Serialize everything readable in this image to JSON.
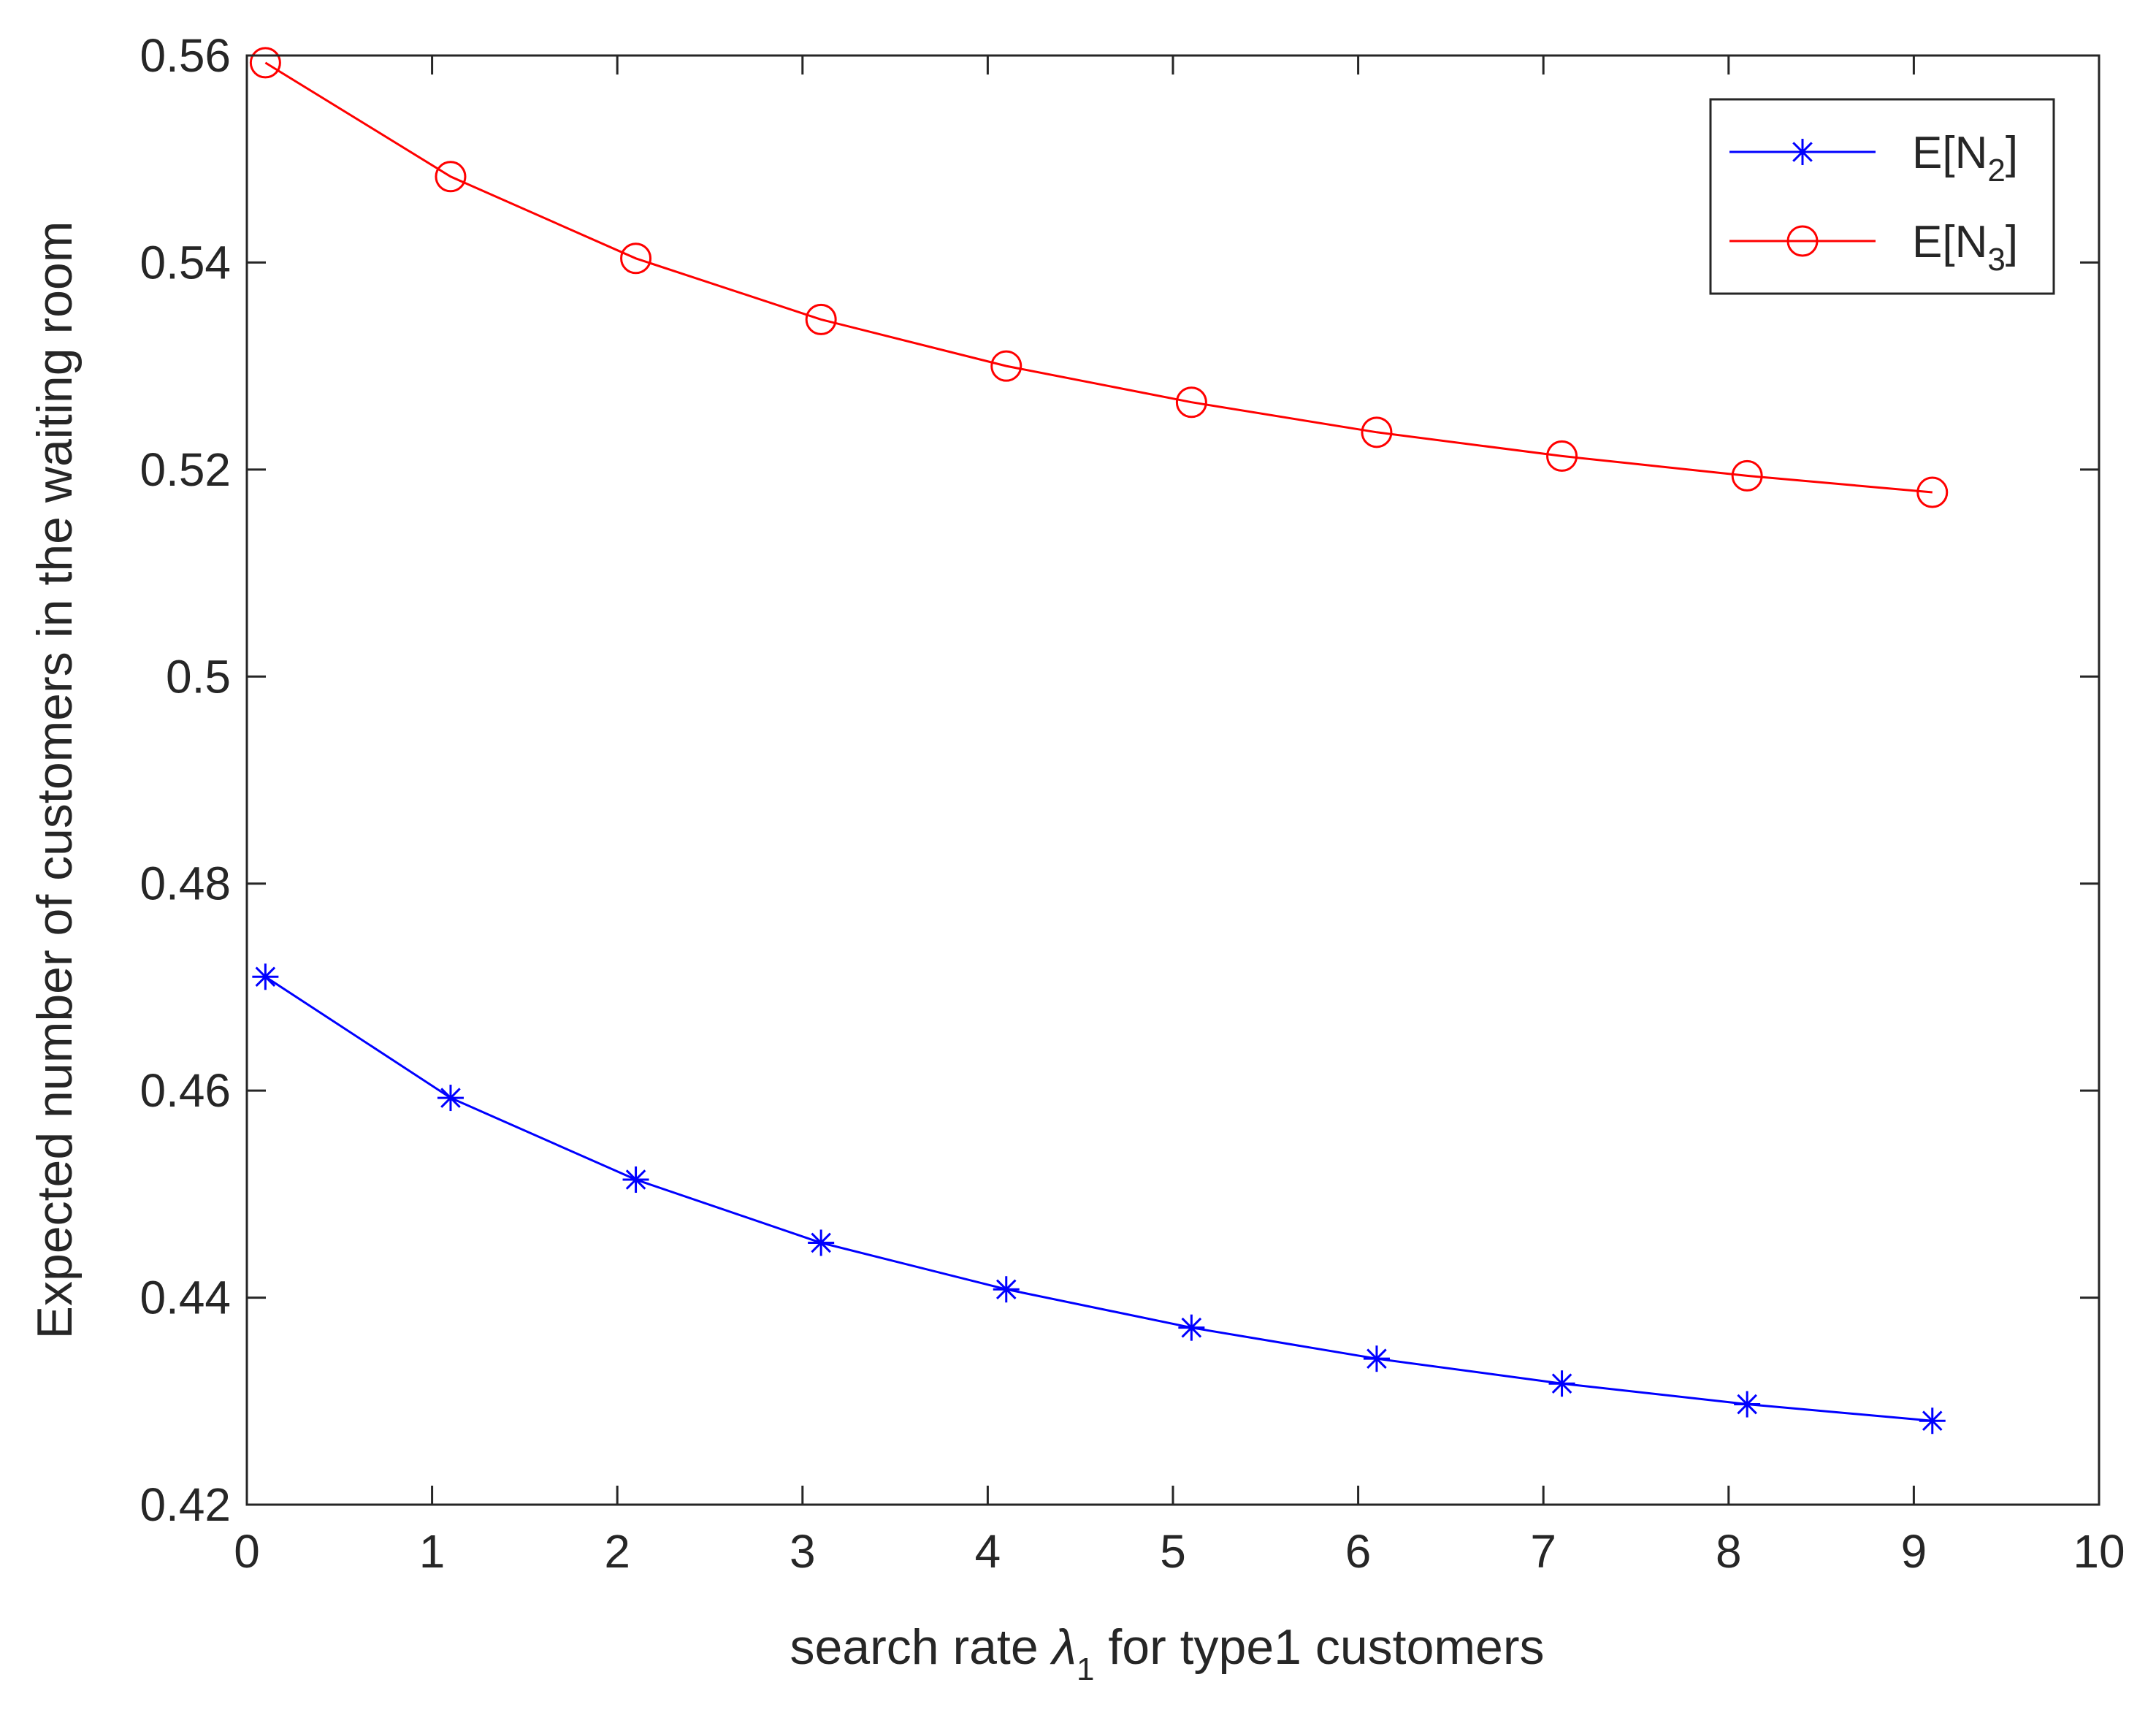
{
  "chart_data": {
    "type": "line",
    "title": "",
    "xlabel": {
      "prefix": "search rate ",
      "symbol": "λ",
      "subscript": "1",
      "suffix": " for type1 customers"
    },
    "ylabel": "Expected number of customers in the waiting room",
    "xlim": [
      0,
      10
    ],
    "ylim": [
      0.42,
      0.56
    ],
    "xticks": [
      0,
      1,
      2,
      3,
      4,
      5,
      6,
      7,
      8,
      9,
      10
    ],
    "xtick_labels": [
      "0",
      "1",
      "2",
      "3",
      "4",
      "5",
      "6",
      "7",
      "8",
      "9",
      "10"
    ],
    "yticks": [
      0.42,
      0.44,
      0.46,
      0.48,
      0.5,
      0.52,
      0.54,
      0.56
    ],
    "ytick_labels": [
      "0.42",
      "0.44",
      "0.46",
      "0.48",
      "0.5",
      "0.52",
      "0.54",
      "0.56"
    ],
    "grid": false,
    "legend_position": "top-right",
    "x": [
      0.1,
      1.1,
      2.1,
      3.1,
      4.1,
      5.1,
      6.1,
      7.1,
      8.1,
      9.1
    ],
    "series": [
      {
        "name": "E[N2]",
        "legend": {
          "prefix": "E[N",
          "subscript": "2",
          "suffix": "]"
        },
        "color": "#0000ff",
        "marker": "asterisk",
        "values": [
          0.471,
          0.4593,
          0.4514,
          0.4453,
          0.4408,
          0.4371,
          0.4341,
          0.4317,
          0.4297,
          0.4281
        ]
      },
      {
        "name": "E[N3]",
        "legend": {
          "prefix": "E[N",
          "subscript": "3",
          "suffix": "]"
        },
        "color": "#ff0000",
        "marker": "circle",
        "values": [
          0.5593,
          0.5483,
          0.5404,
          0.5345,
          0.53,
          0.5265,
          0.5236,
          0.5213,
          0.5194,
          0.5178
        ]
      }
    ]
  }
}
